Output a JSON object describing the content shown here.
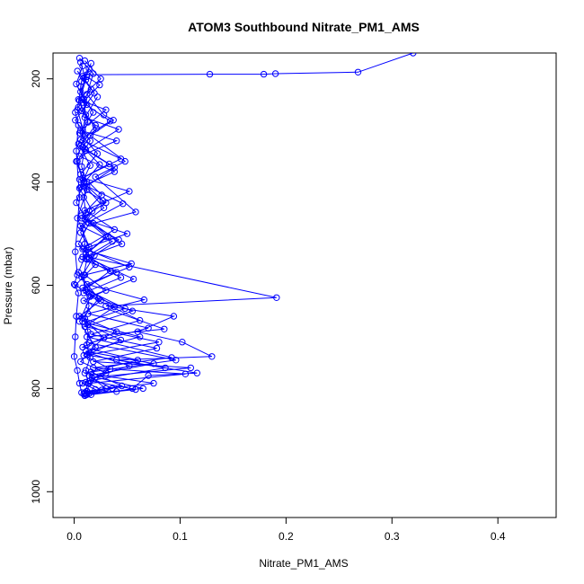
{
  "chart_data": {
    "type": "scatter",
    "title": "ATOM3 Southbound Nitrate_PM1_AMS",
    "xlabel": "Nitrate_PM1_AMS",
    "ylabel": "Pressure (mbar)",
    "xlim": [
      -0.02,
      0.455
    ],
    "ylim": [
      1050,
      150
    ],
    "y_reversed": true,
    "x_ticks": [
      0.0,
      0.1,
      0.2,
      0.3,
      0.4
    ],
    "x_tick_labels": [
      "0.0",
      "0.1",
      "0.2",
      "0.3",
      "0.4"
    ],
    "y_ticks": [
      200,
      400,
      600,
      800,
      1000
    ],
    "y_tick_labels": [
      "200",
      "400",
      "600",
      "800",
      "1000"
    ],
    "grid": false,
    "legend": "none",
    "color": "#0000ff",
    "series": [
      {
        "points": [
          [
            0.32,
            150
          ],
          [
            0.268,
            187
          ],
          [
            0.19,
            190
          ],
          [
            0.179,
            191
          ],
          [
            0.128,
            191
          ],
          [
            0.012,
            192
          ],
          [
            0.008,
            195
          ],
          [
            0.006,
            215
          ],
          [
            0.009,
            240
          ],
          [
            0.011,
            270
          ],
          [
            0.008,
            300
          ],
          [
            0.01,
            335
          ],
          [
            0.007,
            370
          ],
          [
            0.012,
            400
          ],
          [
            0.009,
            430
          ],
          [
            0.011,
            460
          ],
          [
            0.008,
            490
          ],
          [
            0.01,
            520
          ],
          [
            0.012,
            550
          ],
          [
            0.009,
            580
          ],
          [
            0.011,
            610
          ],
          [
            0.014,
            640
          ],
          [
            0.01,
            665
          ],
          [
            0.013,
            690
          ],
          [
            0.012,
            715
          ],
          [
            0.015,
            740
          ],
          [
            0.011,
            765
          ],
          [
            0.013,
            790
          ],
          [
            0.01,
            808
          ]
        ]
      },
      {
        "points": [
          [
            0.005,
            160
          ],
          [
            0.018,
            190
          ],
          [
            0.012,
            230
          ],
          [
            0.028,
            270
          ],
          [
            0.037,
            280
          ],
          [
            0.015,
            310
          ],
          [
            0.048,
            360
          ],
          [
            0.02,
            390
          ],
          [
            0.058,
            458
          ],
          [
            0.018,
            480
          ],
          [
            0.045,
            520
          ],
          [
            0.012,
            545
          ],
          [
            0.191,
            624
          ],
          [
            0.03,
            640
          ],
          [
            0.094,
            660
          ],
          [
            0.06,
            690
          ],
          [
            0.102,
            710
          ],
          [
            0.13,
            738
          ],
          [
            0.04,
            745
          ],
          [
            0.116,
            770
          ],
          [
            0.07,
            775
          ],
          [
            0.055,
            800
          ],
          [
            0.04,
            806
          ],
          [
            0.016,
            812
          ]
        ]
      },
      {
        "points": [
          [
            0.01,
            165
          ],
          [
            0.025,
            200
          ],
          [
            0.004,
            240
          ],
          [
            0.03,
            260
          ],
          [
            0.006,
            300
          ],
          [
            0.04,
            320
          ],
          [
            0.005,
            350
          ],
          [
            0.038,
            380
          ],
          [
            0.006,
            410
          ],
          [
            0.03,
            440
          ],
          [
            0.007,
            470
          ],
          [
            0.05,
            500
          ],
          [
            0.008,
            530
          ],
          [
            0.054,
            558
          ],
          [
            0.01,
            580
          ],
          [
            0.03,
            610
          ],
          [
            0.009,
            630
          ],
          [
            0.085,
            685
          ],
          [
            0.012,
            700
          ],
          [
            0.092,
            740
          ],
          [
            0.018,
            760
          ],
          [
            0.105,
            772
          ],
          [
            0.014,
            790
          ],
          [
            0.012,
            810
          ]
        ]
      },
      {
        "points": [
          [
            0.008,
            175
          ],
          [
            0.002,
            210
          ],
          [
            0.012,
            250
          ],
          [
            0.001,
            280
          ],
          [
            0.015,
            320
          ],
          [
            0.003,
            360
          ],
          [
            0.009,
            400
          ],
          [
            0.002,
            440
          ],
          [
            0.014,
            480
          ],
          [
            0.004,
            520
          ],
          [
            0.02,
            560
          ],
          [
            0.001,
            600
          ],
          [
            0.025,
            630
          ],
          [
            0.005,
            660
          ],
          [
            0.04,
            690
          ],
          [
            0.008,
            720
          ],
          [
            0.06,
            745
          ],
          [
            0.01,
            770
          ],
          [
            0.075,
            790
          ],
          [
            0.012,
            805
          ]
        ]
      },
      {
        "points": [
          [
            0.014,
            180
          ],
          [
            0.006,
            225
          ],
          [
            0.018,
            265
          ],
          [
            0.005,
            305
          ],
          [
            0.022,
            345
          ],
          [
            0.006,
            385
          ],
          [
            0.026,
            425
          ],
          [
            0.007,
            465
          ],
          [
            0.032,
            505
          ],
          [
            0.008,
            545
          ],
          [
            0.044,
            585
          ],
          [
            0.009,
            615
          ],
          [
            0.055,
            650
          ],
          [
            0.01,
            680
          ],
          [
            0.08,
            710
          ],
          [
            0.012,
            735
          ],
          [
            0.086,
            760
          ],
          [
            0.015,
            785
          ],
          [
            0.058,
            802
          ],
          [
            0.011,
            812
          ]
        ]
      },
      {
        "points": [
          [
            0.003,
            185
          ],
          [
            0.016,
            220
          ],
          [
            0.004,
            255
          ],
          [
            0.02,
            290
          ],
          [
            0.006,
            330
          ],
          [
            0.033,
            365
          ],
          [
            0.005,
            395
          ],
          [
            0.028,
            450
          ],
          [
            0.006,
            485
          ],
          [
            0.036,
            515
          ],
          [
            0.007,
            550
          ],
          [
            0.04,
            575
          ],
          [
            0.008,
            605
          ],
          [
            0.048,
            645
          ],
          [
            0.01,
            672
          ],
          [
            0.062,
            700
          ],
          [
            0.011,
            728
          ],
          [
            0.075,
            752
          ],
          [
            0.014,
            775
          ],
          [
            0.03,
            800
          ],
          [
            0.01,
            810
          ]
        ]
      },
      {
        "points": [
          [
            0.012,
            196
          ],
          [
            0.024,
            212
          ],
          [
            0.008,
            246
          ],
          [
            0.034,
            282
          ],
          [
            0.006,
            318
          ],
          [
            0.044,
            355
          ],
          [
            0.008,
            392
          ],
          [
            0.052,
            418
          ],
          [
            0.01,
            455
          ],
          [
            0.038,
            492
          ],
          [
            0.009,
            528
          ],
          [
            0.052,
            565
          ],
          [
            0.012,
            598
          ],
          [
            0.066,
            628
          ],
          [
            0.013,
            655
          ],
          [
            0.07,
            683
          ],
          [
            0.014,
            712
          ],
          [
            0.096,
            745
          ],
          [
            0.016,
            768
          ],
          [
            0.045,
            795
          ],
          [
            0.012,
            806
          ]
        ]
      },
      {
        "points": [
          [
            0.007,
            205
          ],
          [
            0.003,
            260
          ],
          [
            0.01,
            310
          ],
          [
            0.002,
            360
          ],
          [
            0.012,
            415
          ],
          [
            0.003,
            470
          ],
          [
            0.014,
            525
          ],
          [
            0.004,
            575
          ],
          [
            0.016,
            620
          ],
          [
            0.005,
            670
          ],
          [
            0.02,
            720
          ],
          [
            0.006,
            748
          ],
          [
            0.03,
            770
          ],
          [
            0.008,
            790
          ],
          [
            0.02,
            802
          ],
          [
            0.01,
            814
          ]
        ]
      },
      {
        "points": [
          [
            0.001,
            265
          ],
          [
            0.004,
            290
          ],
          [
            0.002,
            340
          ],
          [
            0.005,
            430
          ],
          [
            0.001,
            535
          ],
          [
            0.003,
            580
          ],
          [
            0.0,
            598
          ],
          [
            0.004,
            615
          ],
          [
            0.002,
            660
          ],
          [
            0.001,
            700
          ],
          [
            0.0,
            738
          ],
          [
            0.003,
            765
          ],
          [
            0.005,
            790
          ],
          [
            0.007,
            808
          ]
        ]
      },
      {
        "points": [
          [
            0.022,
            235
          ],
          [
            0.01,
            275
          ],
          [
            0.042,
            298
          ],
          [
            0.011,
            338
          ],
          [
            0.038,
            372
          ],
          [
            0.012,
            408
          ],
          [
            0.046,
            442
          ],
          [
            0.013,
            478
          ],
          [
            0.042,
            512
          ],
          [
            0.014,
            548
          ],
          [
            0.056,
            588
          ],
          [
            0.015,
            622
          ],
          [
            0.062,
            668
          ],
          [
            0.016,
            695
          ],
          [
            0.078,
            722
          ],
          [
            0.018,
            748
          ],
          [
            0.11,
            760
          ],
          [
            0.02,
            778
          ],
          [
            0.065,
            800
          ],
          [
            0.014,
            810
          ]
        ]
      },
      {
        "points": [
          [
            0.016,
            170
          ],
          [
            0.009,
            198
          ],
          [
            0.019,
            228
          ],
          [
            0.007,
            262
          ],
          [
            0.021,
            296
          ],
          [
            0.008,
            332
          ],
          [
            0.024,
            366
          ],
          [
            0.009,
            402
          ],
          [
            0.027,
            436
          ],
          [
            0.01,
            472
          ],
          [
            0.03,
            506
          ],
          [
            0.011,
            540
          ],
          [
            0.034,
            572
          ],
          [
            0.012,
            606
          ],
          [
            0.038,
            642
          ],
          [
            0.013,
            676
          ],
          [
            0.044,
            706
          ],
          [
            0.015,
            732
          ],
          [
            0.052,
            756
          ],
          [
            0.017,
            780
          ],
          [
            0.036,
            800
          ],
          [
            0.012,
            812
          ]
        ]
      },
      {
        "points": [
          [
            0.006,
            168
          ],
          [
            0.011,
            202
          ],
          [
            0.005,
            242
          ],
          [
            0.013,
            284
          ],
          [
            0.004,
            326
          ],
          [
            0.015,
            368
          ],
          [
            0.005,
            412
          ],
          [
            0.017,
            456
          ],
          [
            0.006,
            498
          ],
          [
            0.019,
            542
          ],
          [
            0.007,
            584
          ],
          [
            0.023,
            626
          ],
          [
            0.008,
            664
          ],
          [
            0.028,
            702
          ],
          [
            0.009,
            736
          ],
          [
            0.034,
            762
          ],
          [
            0.011,
            788
          ],
          [
            0.026,
            803
          ],
          [
            0.009,
            811
          ]
        ]
      }
    ]
  }
}
